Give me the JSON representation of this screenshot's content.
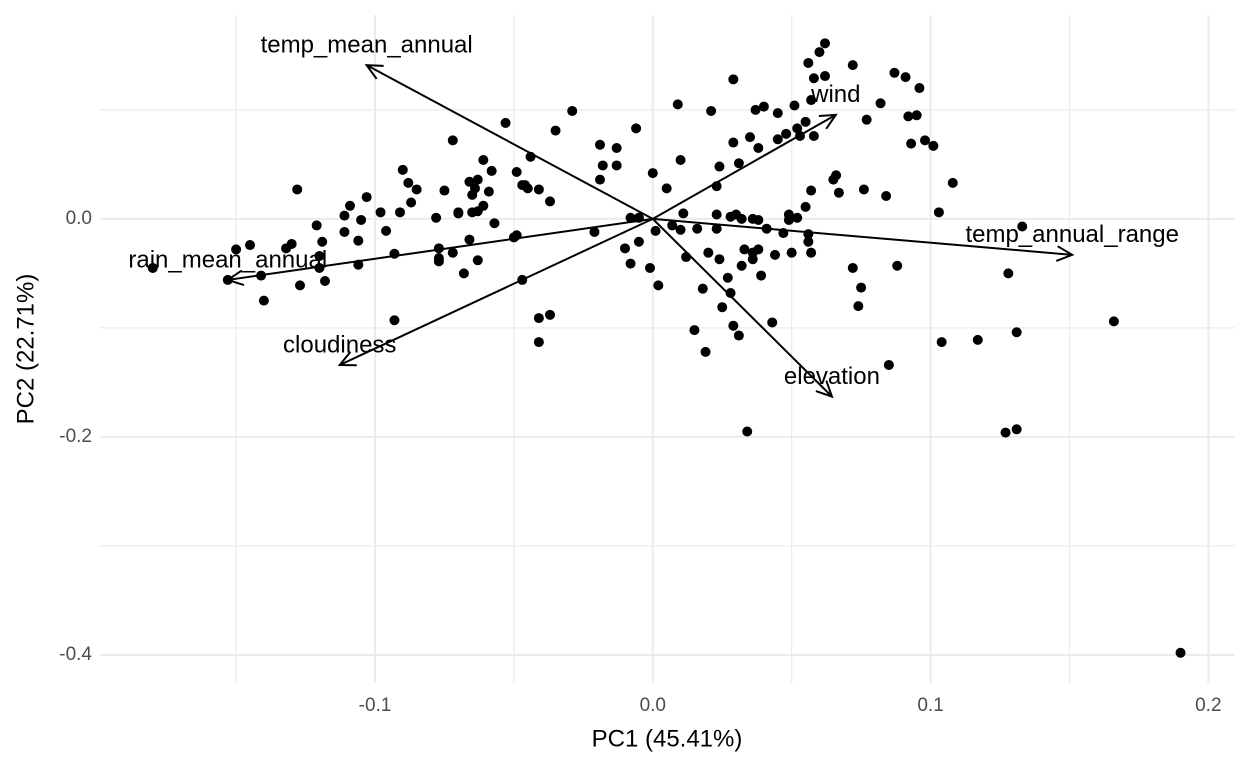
{
  "chart_data": {
    "type": "biplot",
    "x_label": "PC1 (45.41%)",
    "y_label": "PC2 (22.71%)",
    "xlim": [
      -0.199,
      0.2096
    ],
    "ylim": [
      -0.4257,
      0.187
    ],
    "xticks": [
      -0.1,
      {
        "value": 0,
        "label": "0.0"
      },
      0.1,
      0.2
    ],
    "yticks": [
      {
        "value": 0,
        "label": "0.0"
      },
      -0.2,
      -0.4
    ],
    "x_minor_grid": [
      -0.15,
      -0.05,
      0.05,
      0.15
    ],
    "y_minor_grid": [
      0.1,
      -0.1,
      -0.3
    ],
    "grid": true,
    "color": "#000000",
    "x": [
      -0.18,
      -0.15,
      -0.145,
      -0.153,
      -0.141,
      -0.14,
      -0.128,
      -0.127,
      -0.132,
      -0.13,
      -0.121,
      -0.12,
      -0.119,
      -0.118,
      -0.12,
      -0.111,
      -0.109,
      -0.111,
      -0.106,
      -0.105,
      -0.106,
      -0.103,
      -0.098,
      -0.096,
      -0.093,
      -0.093,
      -0.091,
      -0.09,
      -0.088,
      -0.087,
      -0.085,
      -0.078,
      -0.077,
      -0.077,
      -0.077,
      -0.075,
      -0.072,
      -0.072,
      -0.07,
      -0.07,
      -0.068,
      -0.066,
      -0.065,
      -0.065,
      -0.064,
      -0.063,
      -0.063,
      -0.063,
      -0.061,
      -0.061,
      -0.059,
      -0.066,
      -0.058,
      -0.057,
      -0.053,
      -0.05,
      -0.049,
      -0.049,
      -0.047,
      -0.047,
      -0.046,
      -0.045,
      -0.044,
      -0.041,
      -0.041,
      -0.041,
      -0.037,
      -0.037,
      -0.035,
      -0.029,
      -0.021,
      -0.019,
      -0.019,
      -0.018,
      -0.013,
      -0.013,
      -0.01,
      -0.008,
      -0.008,
      -0.006,
      -0.005,
      -0.005,
      -0.001,
      0.0,
      0.001,
      0.002,
      0.005,
      0.007,
      0.009,
      0.01,
      0.01,
      0.011,
      0.012,
      0.015,
      0.016,
      0.018,
      0.019,
      0.02,
      0.021,
      0.023,
      0.023,
      0.023,
      0.024,
      0.024,
      0.025,
      0.027,
      0.028,
      0.028,
      0.029,
      0.029,
      0.029,
      0.03,
      0.031,
      0.031,
      0.032,
      0.032,
      0.033,
      0.034,
      0.035,
      0.036,
      0.036,
      0.036,
      0.037,
      0.038,
      0.038,
      0.038,
      0.039,
      0.04,
      0.041,
      0.043,
      0.044,
      0.045,
      0.045,
      0.047,
      0.048,
      0.049,
      0.049,
      0.05,
      0.051,
      0.052,
      0.052,
      0.053,
      0.055,
      0.055,
      0.056,
      0.056,
      0.057,
      0.057,
      0.057,
      0.056,
      0.058,
      0.058,
      0.06,
      0.062,
      0.062,
      0.065,
      0.066,
      0.067,
      0.072,
      0.072,
      0.074,
      0.075,
      0.076,
      0.077,
      0.082,
      0.084,
      0.085,
      0.087,
      0.088,
      0.091,
      0.092,
      0.093,
      0.095,
      0.096,
      0.098,
      0.101,
      0.103,
      0.108,
      0.104,
      0.117,
      0.133,
      0.128,
      0.131,
      0.127,
      0.131,
      0.166,
      0.19
    ],
    "y": [
      -0.045,
      -0.028,
      -0.024,
      -0.056,
      -0.052,
      -0.075,
      0.027,
      -0.061,
      -0.027,
      -0.023,
      -0.006,
      -0.034,
      -0.021,
      -0.057,
      -0.045,
      0.003,
      0.012,
      -0.012,
      -0.02,
      -0.001,
      -0.042,
      0.02,
      0.006,
      -0.011,
      -0.032,
      -0.093,
      0.006,
      0.045,
      0.033,
      0.015,
      0.027,
      0.001,
      -0.027,
      -0.036,
      -0.039,
      0.026,
      0.072,
      -0.031,
      0.005,
      0.006,
      -0.05,
      0.034,
      0.022,
      0.006,
      0.028,
      0.007,
      -0.038,
      0.036,
      0.012,
      0.054,
      0.025,
      -0.019,
      0.044,
      -0.004,
      0.088,
      -0.017,
      -0.015,
      0.043,
      0.031,
      -0.056,
      0.031,
      0.028,
      0.057,
      -0.091,
      -0.113,
      0.027,
      -0.088,
      0.016,
      0.081,
      0.099,
      -0.012,
      0.036,
      0.068,
      0.049,
      0.065,
      0.049,
      -0.027,
      -0.041,
      0.001,
      0.083,
      -0.021,
      0.001,
      -0.045,
      0.042,
      -0.011,
      -0.061,
      0.028,
      -0.006,
      0.105,
      -0.01,
      0.054,
      0.005,
      -0.035,
      -0.102,
      -0.009,
      -0.064,
      -0.122,
      -0.031,
      0.099,
      0.004,
      0.03,
      -0.009,
      0.048,
      -0.037,
      -0.081,
      -0.054,
      -0.068,
      0.002,
      0.07,
      0.128,
      -0.098,
      0.004,
      -0.107,
      0.051,
      0.0,
      -0.043,
      -0.028,
      -0.195,
      0.075,
      0.0,
      -0.037,
      -0.031,
      0.1,
      0.065,
      -0.001,
      -0.028,
      -0.052,
      0.103,
      -0.009,
      -0.095,
      -0.033,
      0.097,
      0.073,
      -0.013,
      0.078,
      0.004,
      -0.001,
      -0.031,
      0.104,
      0.083,
      0.001,
      0.076,
      0.089,
      0.011,
      -0.014,
      -0.021,
      -0.031,
      0.026,
      0.109,
      0.143,
      0.129,
      0.076,
      0.153,
      0.161,
      0.131,
      0.036,
      0.04,
      0.024,
      0.141,
      -0.045,
      -0.08,
      -0.063,
      0.027,
      0.091,
      0.106,
      0.021,
      -0.134,
      0.134,
      -0.043,
      0.13,
      0.094,
      0.069,
      0.095,
      0.12,
      0.072,
      0.067,
      0.006,
      0.033,
      -0.113,
      -0.111,
      -0.007,
      -0.05,
      -0.104,
      -0.196,
      -0.193,
      -0.094,
      -0.398
    ],
    "arrows": [
      {
        "label": "temp_mean_annual",
        "x": -0.103,
        "y": 0.141
      },
      {
        "label": "wind",
        "x": 0.0659,
        "y": 0.0954
      },
      {
        "label": "temp_annual_range",
        "x": 0.151,
        "y": -0.033
      },
      {
        "label": "rain_mean_annual",
        "x": -0.153,
        "y": -0.056
      },
      {
        "label": "cloudiness",
        "x": -0.1127,
        "y": -0.134
      },
      {
        "label": "elevation",
        "x": 0.0645,
        "y": -0.163
      }
    ]
  }
}
